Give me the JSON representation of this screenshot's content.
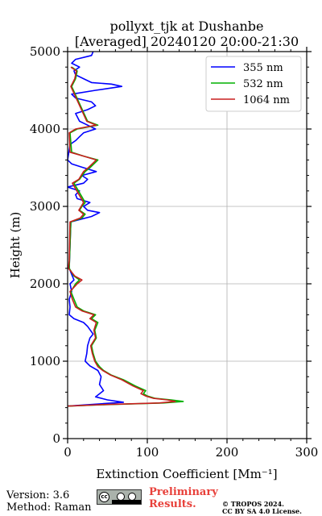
{
  "chart_data": {
    "type": "line",
    "title_line1": "pollyxt_tjk at Dushanbe",
    "title_line2": "[Averaged] 20240120 20:00-21:30",
    "xlabel": "Extinction Coefficient [Mm⁻¹]",
    "ylabel": "Height (m)",
    "xlim": [
      0,
      300
    ],
    "ylim": [
      0,
      5000
    ],
    "xticks": [
      "0",
      "100",
      "200",
      "300"
    ],
    "yticks": [
      "0",
      "1000",
      "2000",
      "3000",
      "4000",
      "5000"
    ],
    "grid": true,
    "legend_position": "top-right",
    "series": [
      {
        "name": "355 nm",
        "color": "#0000ff",
        "points": [
          [
            0,
            420
          ],
          [
            70,
            470
          ],
          [
            50,
            500
          ],
          [
            35,
            540
          ],
          [
            45,
            620
          ],
          [
            40,
            700
          ],
          [
            42,
            800
          ],
          [
            38,
            880
          ],
          [
            28,
            940
          ],
          [
            22,
            1000
          ],
          [
            24,
            1100
          ],
          [
            25,
            1200
          ],
          [
            28,
            1300
          ],
          [
            32,
            1350
          ],
          [
            25,
            1450
          ],
          [
            20,
            1500
          ],
          [
            8,
            1550
          ],
          [
            2,
            1600
          ],
          [
            3,
            1700
          ],
          [
            2,
            1800
          ],
          [
            5,
            1900
          ],
          [
            3,
            2000
          ],
          [
            8,
            2050
          ],
          [
            6,
            2100
          ],
          [
            2,
            2200
          ],
          [
            4,
            2800
          ],
          [
            30,
            2870
          ],
          [
            40,
            2920
          ],
          [
            25,
            2950
          ],
          [
            20,
            3000
          ],
          [
            28,
            3050
          ],
          [
            12,
            3100
          ],
          [
            10,
            3150
          ],
          [
            15,
            3200
          ],
          [
            0,
            3250
          ],
          [
            20,
            3300
          ],
          [
            25,
            3350
          ],
          [
            18,
            3400
          ],
          [
            36,
            3450
          ],
          [
            20,
            3500
          ],
          [
            5,
            3550
          ],
          [
            0,
            3600
          ],
          [
            3,
            3800
          ],
          [
            10,
            3850
          ],
          [
            15,
            3900
          ],
          [
            20,
            3950
          ],
          [
            35,
            4000
          ],
          [
            25,
            4050
          ],
          [
            15,
            4100
          ],
          [
            10,
            4200
          ],
          [
            25,
            4250
          ],
          [
            35,
            4300
          ],
          [
            30,
            4350
          ],
          [
            10,
            4400
          ],
          [
            5,
            4450
          ],
          [
            35,
            4500
          ],
          [
            68,
            4550
          ],
          [
            55,
            4580
          ],
          [
            30,
            4600
          ],
          [
            20,
            4650
          ],
          [
            10,
            4700
          ],
          [
            8,
            4750
          ],
          [
            15,
            4800
          ],
          [
            5,
            4850
          ],
          [
            10,
            4900
          ],
          [
            30,
            4950
          ],
          [
            32,
            5000
          ]
        ]
      },
      {
        "name": "532 nm",
        "color": "#00b000",
        "points": [
          [
            0,
            420
          ],
          [
            50,
            440
          ],
          [
            120,
            460
          ],
          [
            145,
            480
          ],
          [
            130,
            500
          ],
          [
            110,
            520
          ],
          [
            100,
            550
          ],
          [
            95,
            580
          ],
          [
            98,
            620
          ],
          [
            85,
            680
          ],
          [
            70,
            760
          ],
          [
            55,
            820
          ],
          [
            45,
            880
          ],
          [
            40,
            930
          ],
          [
            35,
            1000
          ],
          [
            32,
            1100
          ],
          [
            30,
            1200
          ],
          [
            36,
            1300
          ],
          [
            34,
            1400
          ],
          [
            38,
            1500
          ],
          [
            30,
            1550
          ],
          [
            35,
            1600
          ],
          [
            20,
            1650
          ],
          [
            12,
            1700
          ],
          [
            8,
            1800
          ],
          [
            4,
            1900
          ],
          [
            10,
            2000
          ],
          [
            15,
            2050
          ],
          [
            8,
            2100
          ],
          [
            2,
            2200
          ],
          [
            4,
            2800
          ],
          [
            18,
            2850
          ],
          [
            22,
            2900
          ],
          [
            15,
            2950
          ],
          [
            18,
            3000
          ],
          [
            22,
            3050
          ],
          [
            8,
            3300
          ],
          [
            15,
            3350
          ],
          [
            22,
            3450
          ],
          [
            28,
            3500
          ],
          [
            38,
            3600
          ],
          [
            20,
            3650
          ],
          [
            5,
            3700
          ],
          [
            3,
            3950
          ],
          [
            12,
            4000
          ],
          [
            38,
            4050
          ],
          [
            25,
            4100
          ],
          [
            5,
            4550
          ],
          [
            10,
            4650
          ],
          [
            12,
            4750
          ],
          [
            5,
            4800
          ]
        ]
      },
      {
        "name": "1064 nm",
        "color": "#c81e1e",
        "points": [
          [
            0,
            420
          ],
          [
            45,
            440
          ],
          [
            115,
            460
          ],
          [
            135,
            480
          ],
          [
            125,
            500
          ],
          [
            108,
            520
          ],
          [
            98,
            550
          ],
          [
            92,
            580
          ],
          [
            95,
            620
          ],
          [
            82,
            680
          ],
          [
            68,
            760
          ],
          [
            54,
            820
          ],
          [
            44,
            880
          ],
          [
            38,
            930
          ],
          [
            34,
            1000
          ],
          [
            31,
            1100
          ],
          [
            29,
            1200
          ],
          [
            35,
            1300
          ],
          [
            33,
            1400
          ],
          [
            36,
            1500
          ],
          [
            28,
            1550
          ],
          [
            33,
            1600
          ],
          [
            18,
            1650
          ],
          [
            10,
            1700
          ],
          [
            6,
            1800
          ],
          [
            3,
            1900
          ],
          [
            12,
            2000
          ],
          [
            18,
            2050
          ],
          [
            9,
            2100
          ],
          [
            1,
            2200
          ],
          [
            2,
            2300
          ],
          [
            3,
            2800
          ],
          [
            16,
            2850
          ],
          [
            20,
            2900
          ],
          [
            14,
            2950
          ],
          [
            17,
            3000
          ],
          [
            20,
            3050
          ],
          [
            6,
            3300
          ],
          [
            14,
            3350
          ],
          [
            20,
            3450
          ],
          [
            26,
            3500
          ],
          [
            36,
            3600
          ],
          [
            20,
            3650
          ],
          [
            3,
            3700
          ],
          [
            2,
            3950
          ],
          [
            10,
            4000
          ],
          [
            36,
            4050
          ],
          [
            24,
            4100
          ],
          [
            4,
            4550
          ],
          [
            9,
            4650
          ],
          [
            11,
            4750
          ],
          [
            4,
            4800
          ]
        ]
      }
    ]
  },
  "footer": {
    "version": "Version: 3.6",
    "method": "Method: Raman",
    "preliminary_line1": "Preliminary",
    "preliminary_line2": "Results.",
    "copyright_line1": "© TROPOS 2024.",
    "copyright_line2": "CC BY SA 4.0 License."
  },
  "license_badge": {
    "icon": "cc-by-sa-icon",
    "cc_text": "cc"
  }
}
